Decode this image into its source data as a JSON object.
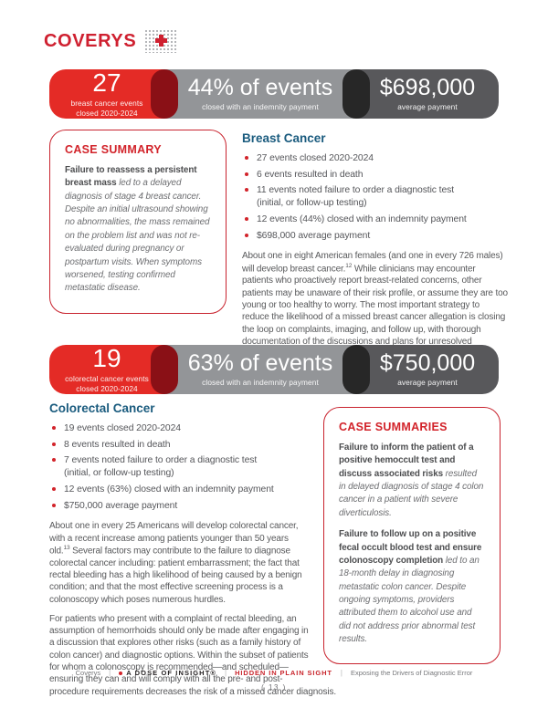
{
  "logo": {
    "text": "COVERYS"
  },
  "colors": {
    "coverys_red": "#d2232a",
    "banner_red": "#e42b26",
    "banner_maroon": "#8a1016",
    "banner_gray": "#939598",
    "banner_dark_gray": "#58585b",
    "banner_black_capsule": "#272727",
    "heading_blue": "#1a5b7e",
    "body_text": "#58595b"
  },
  "banners": [
    {
      "count": "27",
      "count_label_1": "breast cancer events",
      "count_label_2": "closed 2020-2024",
      "mid_value": "44% of events",
      "mid_label": "closed with an indemnity payment",
      "right_value": "$698,000",
      "right_label": "average payment"
    },
    {
      "count": "19",
      "count_label_1": "colorectal cancer events",
      "count_label_2": "closed 2020-2024",
      "mid_value": "63% of events",
      "mid_label": "closed with an indemnity payment",
      "right_value": "$750,000",
      "right_label": "average payment"
    }
  ],
  "case_summary": {
    "title": "CASE SUMMARY",
    "lead": "Failure to reassess a persistent breast mass",
    "body": "led to a delayed diagnosis of stage 4 breast cancer. Despite an initial ultrasound showing no abnormalities, the mass remained on the problem list and was not re-evaluated during pregnancy or postpartum visits. When symptoms worsened, testing confirmed metastatic disease."
  },
  "breast": {
    "title": "Breast Cancer",
    "bullets": [
      {
        "text": "27 events closed 2020-2024"
      },
      {
        "text": "6 events resulted in death"
      },
      {
        "text": "11 events noted failure to order a diagnostic test",
        "text2": "(initial, or follow-up testing)"
      },
      {
        "text": "12 events (44%) closed with an indemnity payment"
      },
      {
        "text": "$698,000 average payment"
      }
    ],
    "para_1": "About one in eight American females (and one in every 726 males) will develop breast cancer.",
    "para_sup": "12",
    "para_2": "While clinicians may encounter patients who proactively report breast-related concerns, other patients may be unaware of their risk profile, or assume they are too young or too healthy to worry. The most important strategy to reduce the likelihood of a missed breast cancer allegation is closing the loop on complaints, imaging, and follow up, with thorough documentation of the discussions and plans for unresolved concerns."
  },
  "colorectal": {
    "title": "Colorectal Cancer",
    "bullets": [
      {
        "text": "19 events closed 2020-2024"
      },
      {
        "text": "8 events resulted in death"
      },
      {
        "text": "7 events noted failure to order a diagnostic test",
        "text2": "(initial, or follow-up testing)"
      },
      {
        "text": "12 events (63%) closed with an indemnity payment"
      },
      {
        "text": "$750,000 average payment"
      }
    ],
    "para1_1": "About one in every 25 Americans will develop colorectal cancer, with a recent increase among patients younger than 50 years old.",
    "para1_sup": "13",
    "para1_2": "Several factors may contribute to the failure to diagnose colorectal cancer including: patient embarrassment; the fact that rectal bleeding has a high likelihood of being caused by a benign condition; and that the most effective screening process is a colonoscopy which poses numerous hurdles.",
    "para2": "For patients who present with a complaint of rectal bleeding, an assumption of hemorrhoids should only be made after engaging in a discussion that explores other risks (such as a family history of colon cancer) and diagnostic options. Within the subset of patients for whom a colonoscopy is recommended—and scheduled—ensuring they can and will comply with all the pre- and post-procedure requirements decreases the risk of a missed cancer diagnosis."
  },
  "case_summaries": {
    "title": "CASE SUMMARIES",
    "items": [
      {
        "lead": "Failure to inform the patient of a positive hemoccult test and discuss associated risks",
        "body": "resulted in delayed diagnosis of stage 4 colon cancer in a patient with severe diverticulosis."
      },
      {
        "lead": "Failure to follow up on a positive fecal occult blood test and ensure colonoscopy completion",
        "body": "led to an 18-month delay in diagnosing metastatic colon cancer. Despite ongoing symptoms, providers attributed them to alcohol use and did not address prior abnormal test results."
      }
    ]
  },
  "footer": {
    "brand": "Coverys",
    "divider": "|",
    "dose": "A DOSE OF INSIGHT®",
    "hidden": "HIDDEN IN PLAIN SIGHT",
    "tagline": "Exposing the Drivers of Diagnostic Error",
    "page_number": "( 13 )"
  }
}
